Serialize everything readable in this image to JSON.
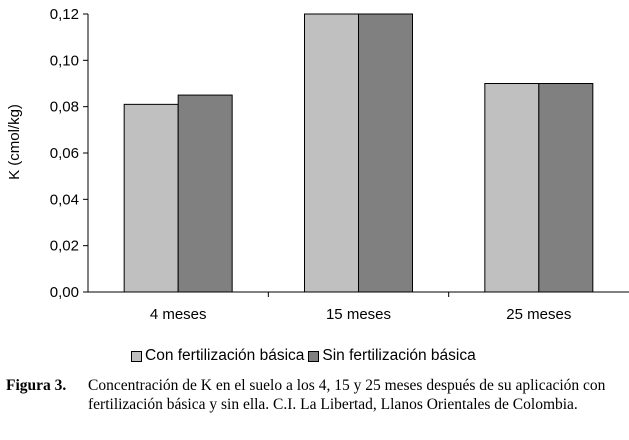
{
  "chart_data": {
    "type": "bar",
    "categories": [
      "4 meses",
      "15 meses",
      "25 meses"
    ],
    "series": [
      {
        "name": "Con fertilización básica",
        "values": [
          0.081,
          0.12,
          0.09
        ],
        "color": "#c0c0c0"
      },
      {
        "name": "Sin fertilización básica",
        "values": [
          0.085,
          0.12,
          0.09
        ],
        "color": "#808080"
      }
    ],
    "ylabel": "K (cmol/kg)",
    "xlabel": "",
    "ylim": [
      0,
      0.12
    ],
    "yticks": [
      "0,00",
      "0,02",
      "0,04",
      "0,06",
      "0,08",
      "0,10",
      "0,12"
    ],
    "yticks_values": [
      0,
      0.02,
      0.04,
      0.06,
      0.08,
      0.1,
      0.12
    ],
    "grid": false,
    "legend_position": "bottom"
  },
  "caption": {
    "label": "Figura 3.",
    "text": "Concentración de K en el suelo a los 4, 15 y 25 meses después de su aplicación con fertilización básica y sin ella. C.I. La Libertad, Llanos Orientales de Colombia."
  }
}
